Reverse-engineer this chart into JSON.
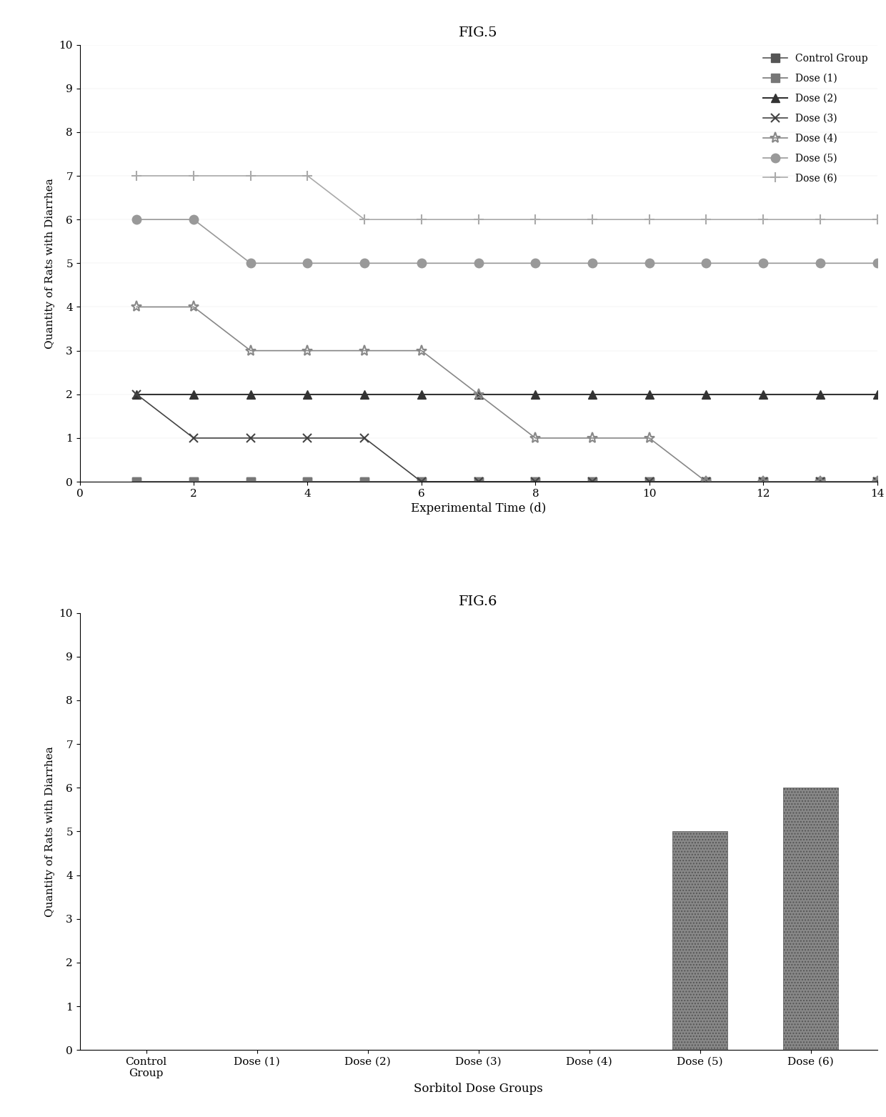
{
  "fig5_title": "FIG.5",
  "fig6_title": "FIG.6",
  "time_points": [
    1,
    2,
    3,
    4,
    5,
    6,
    7,
    8,
    9,
    10,
    11,
    12,
    13,
    14
  ],
  "series": {
    "Control Group": [
      0,
      0,
      0,
      0,
      0,
      0,
      0,
      0,
      0,
      0,
      0,
      0,
      0,
      0
    ],
    "Dose (1)": [
      0,
      0,
      0,
      0,
      0,
      0,
      0,
      0,
      0,
      0,
      0,
      0,
      0,
      0
    ],
    "Dose (2)": [
      2,
      2,
      2,
      2,
      2,
      2,
      2,
      2,
      2,
      2,
      2,
      2,
      2,
      2
    ],
    "Dose (3)": [
      2,
      1,
      1,
      1,
      1,
      0,
      0,
      0,
      0,
      0,
      0,
      0,
      0,
      0
    ],
    "Dose (4)": [
      4,
      4,
      3,
      3,
      3,
      3,
      2,
      1,
      1,
      1,
      0,
      0,
      0,
      0
    ],
    "Dose (5)": [
      6,
      6,
      5,
      5,
      5,
      5,
      5,
      5,
      5,
      5,
      5,
      5,
      5,
      5
    ],
    "Dose (6)": [
      7,
      7,
      7,
      7,
      6,
      6,
      6,
      6,
      6,
      6,
      6,
      6,
      6,
      6
    ]
  },
  "line_styles": {
    "Control Group": {
      "color": "#555555",
      "marker": "s",
      "markersize": 8,
      "lw": 1.2,
      "filled": true
    },
    "Dose (1)": {
      "color": "#777777",
      "marker": "s",
      "markersize": 8,
      "lw": 1.2,
      "filled": true
    },
    "Dose (2)": {
      "color": "#333333",
      "marker": "^",
      "markersize": 8,
      "lw": 1.5,
      "filled": true
    },
    "Dose (3)": {
      "color": "#444444",
      "marker": "x",
      "markersize": 9,
      "lw": 1.2,
      "filled": false
    },
    "Dose (4)": {
      "color": "#888888",
      "marker": "*",
      "markersize": 11,
      "lw": 1.2,
      "filled": false
    },
    "Dose (5)": {
      "color": "#999999",
      "marker": "o",
      "markersize": 9,
      "lw": 1.2,
      "filled": true
    },
    "Dose (6)": {
      "color": "#aaaaaa",
      "marker": "+",
      "markersize": 10,
      "lw": 1.2,
      "filled": false
    }
  },
  "fig5_ylim": [
    0,
    10
  ],
  "fig5_yticks": [
    0,
    1,
    2,
    3,
    4,
    5,
    6,
    7,
    8,
    9,
    10
  ],
  "fig5_xlim": [
    0,
    14
  ],
  "fig5_xticks": [
    0,
    2,
    4,
    6,
    8,
    10,
    12,
    14
  ],
  "fig5_xlabel": "Experimental Time (d)",
  "fig5_ylabel": "Quantity of Rats with Diarrhea",
  "bar_categories": [
    "Control\nGroup",
    "Dose (1)",
    "Dose (2)",
    "Dose (3)",
    "Dose (4)",
    "Dose (5)",
    "Dose (6)"
  ],
  "bar_values": [
    0,
    0,
    0,
    0,
    0,
    5,
    6
  ],
  "bar_color": "#888888",
  "bar_hatch": "///",
  "fig6_ylim": [
    0,
    10
  ],
  "fig6_yticks": [
    0,
    1,
    2,
    3,
    4,
    5,
    6,
    7,
    8,
    9,
    10
  ],
  "fig6_xlabel": "Sorbitol Dose Groups",
  "fig6_ylabel": "Quantity of Rats with Diarrhea",
  "background_color": "#ffffff",
  "text_color": "#000000"
}
